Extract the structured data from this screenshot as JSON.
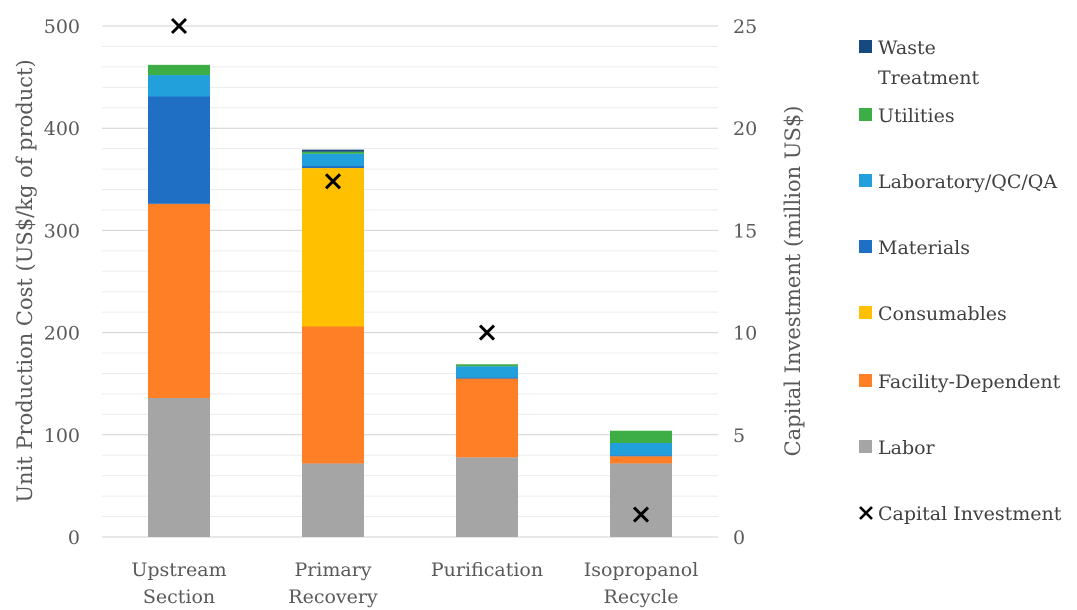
{
  "chart_data": {
    "type": "bar",
    "stacked": true,
    "categories": [
      [
        "Upstream",
        "Section"
      ],
      [
        "Primary",
        "Recovery"
      ],
      [
        "Purification"
      ],
      [
        "Isopropanol",
        "Recycle"
      ]
    ],
    "ylabel": "Unit Production Cost (US$/kg of product)",
    "y2label": "Capital Investment (million US$)",
    "ylim": [
      0,
      500
    ],
    "y2lim": [
      0,
      25
    ],
    "y_ticks": [
      "0",
      "100",
      "200",
      "300",
      "400",
      "500"
    ],
    "y2_ticks": [
      "0",
      "5",
      "10",
      "15",
      "20",
      "25"
    ],
    "grid": true,
    "legend_position": "right",
    "series": [
      {
        "name": "Labor",
        "color": "#a5a5a5",
        "values": [
          136,
          72,
          78,
          72
        ]
      },
      {
        "name": "Facility-Dependent",
        "color": "#ff7f27",
        "values": [
          190,
          134,
          77,
          7
        ]
      },
      {
        "name": "Consumables",
        "color": "#ffc000",
        "values": [
          0,
          155,
          0,
          0
        ]
      },
      {
        "name": "Materials",
        "color": "#1f6fc5",
        "values": [
          105,
          2,
          1,
          1
        ]
      },
      {
        "name": "Laboratory/QC/QA",
        "color": "#21a0db",
        "values": [
          21,
          12,
          11,
          12
        ]
      },
      {
        "name": "Utilities",
        "color": "#3dad45",
        "values": [
          10,
          2,
          2,
          12
        ]
      },
      {
        "name": "Waste Treatment",
        "color": "#164a7e",
        "values": [
          0,
          2,
          0,
          0
        ]
      }
    ],
    "capital_investment": {
      "name": "Capital Investment",
      "axis": "secondary",
      "marker": "x",
      "values": [
        25,
        17.4,
        10,
        1.1
      ]
    },
    "legend": [
      [
        "Waste",
        "Treatment"
      ],
      [
        "Utilities"
      ],
      [
        "Laboratory/QC/QA"
      ],
      [
        "Materials"
      ],
      [
        "Consumables"
      ],
      [
        "Facility-Dependent"
      ],
      [
        "Labor"
      ],
      [
        "Capital Investment"
      ]
    ]
  }
}
